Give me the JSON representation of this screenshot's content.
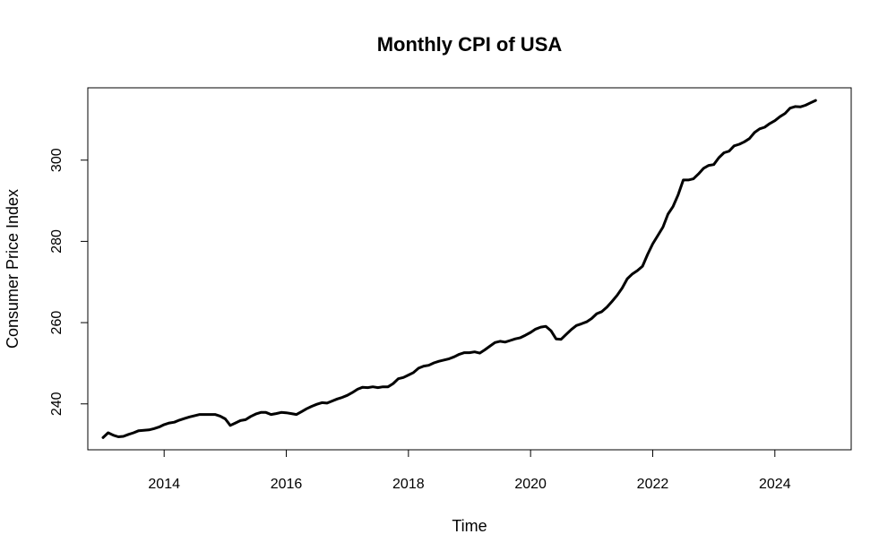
{
  "chart_data": {
    "type": "line",
    "title": "Monthly CPI of USA",
    "xlabel": "Time",
    "ylabel": "Consumer Price Index",
    "xlim": [
      2012.75,
      2025.25
    ],
    "ylim": [
      228.7,
      317.8
    ],
    "xticks": [
      "2014",
      "2016",
      "2018",
      "2020",
      "2022",
      "2024"
    ],
    "yticks": [
      "240",
      "260",
      "280",
      "300"
    ],
    "grid": false,
    "line_color": "#000000",
    "series": [
      {
        "x": [
          2013.0,
          2013.083,
          2013.167,
          2013.25,
          2013.333,
          2013.417,
          2013.5,
          2013.583,
          2013.667,
          2013.75,
          2013.833,
          2013.917,
          2014.0,
          2014.083,
          2014.167,
          2014.25,
          2014.333,
          2014.417,
          2014.5,
          2014.583,
          2014.667,
          2014.75,
          2014.833,
          2014.917,
          2015.0,
          2015.083,
          2015.167,
          2015.25,
          2015.333,
          2015.417,
          2015.5,
          2015.583,
          2015.667,
          2015.75,
          2015.833,
          2015.917,
          2016.0,
          2016.083,
          2016.167,
          2016.25,
          2016.333,
          2016.417,
          2016.5,
          2016.583,
          2016.667,
          2016.75,
          2016.833,
          2016.917,
          2017.0,
          2017.083,
          2017.167,
          2017.25,
          2017.333,
          2017.417,
          2017.5,
          2017.583,
          2017.667,
          2017.75,
          2017.833,
          2017.917,
          2018.0,
          2018.083,
          2018.167,
          2018.25,
          2018.333,
          2018.417,
          2018.5,
          2018.583,
          2018.667,
          2018.75,
          2018.833,
          2018.917,
          2019.0,
          2019.083,
          2019.167,
          2019.25,
          2019.333,
          2019.417,
          2019.5,
          2019.583,
          2019.667,
          2019.75,
          2019.833,
          2019.917,
          2020.0,
          2020.083,
          2020.167,
          2020.25,
          2020.333,
          2020.417,
          2020.5,
          2020.583,
          2020.667,
          2020.75,
          2020.833,
          2020.917,
          2021.0,
          2021.083,
          2021.167,
          2021.25,
          2021.333,
          2021.417,
          2021.5,
          2021.583,
          2021.667,
          2021.75,
          2021.833,
          2021.917,
          2022.0,
          2022.083,
          2022.167,
          2022.25,
          2022.333,
          2022.417,
          2022.5,
          2022.583,
          2022.667,
          2022.75,
          2022.833,
          2022.917,
          2023.0,
          2023.083,
          2023.167,
          2023.25,
          2023.333,
          2023.417,
          2023.5,
          2023.583,
          2023.667,
          2023.75,
          2023.833,
          2023.917,
          2024.0,
          2024.083,
          2024.167,
          2024.25,
          2024.333,
          2024.417,
          2024.5,
          2024.583,
          2024.667
        ],
        "values": [
          231.7,
          232.9,
          232.3,
          231.9,
          232.0,
          232.5,
          232.9,
          233.4,
          233.5,
          233.6,
          233.9,
          234.3,
          234.9,
          235.3,
          235.5,
          236.0,
          236.4,
          236.8,
          237.1,
          237.4,
          237.4,
          237.4,
          237.4,
          237.0,
          236.3,
          234.7,
          235.3,
          235.9,
          236.1,
          236.9,
          237.5,
          237.9,
          237.9,
          237.4,
          237.6,
          237.9,
          237.8,
          237.6,
          237.4,
          238.1,
          238.8,
          239.4,
          239.9,
          240.3,
          240.2,
          240.7,
          241.2,
          241.6,
          242.1,
          242.8,
          243.6,
          244.1,
          244.0,
          244.2,
          244.0,
          244.2,
          244.2,
          245.0,
          246.2,
          246.5,
          247.1,
          247.7,
          248.8,
          249.3,
          249.5,
          250.1,
          250.5,
          250.8,
          251.1,
          251.6,
          252.2,
          252.6,
          252.6,
          252.8,
          252.5,
          253.3,
          254.2,
          255.1,
          255.4,
          255.2,
          255.6,
          256.0,
          256.3,
          256.9,
          257.6,
          258.4,
          258.9,
          259.1,
          258.0,
          256.0,
          255.9,
          257.1,
          258.3,
          259.3,
          259.7,
          260.2,
          261.0,
          262.2,
          262.7,
          263.8,
          265.2,
          266.7,
          268.5,
          270.8,
          272.0,
          272.8,
          273.9,
          276.8,
          279.4,
          281.4,
          283.5,
          286.7,
          288.6,
          291.5,
          295.1,
          295.1,
          295.4,
          296.6,
          298.0,
          298.7,
          298.9,
          300.6,
          301.8,
          302.2,
          303.5,
          303.9,
          304.5,
          305.3,
          306.8,
          307.7,
          308.1,
          309.0,
          309.7,
          310.7,
          311.5,
          312.8,
          313.2,
          313.1,
          313.5,
          314.1,
          314.7
        ]
      }
    ]
  }
}
